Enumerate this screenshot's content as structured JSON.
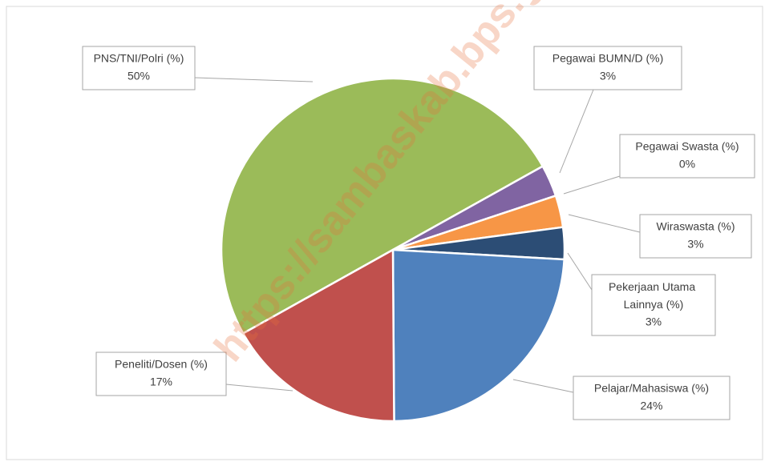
{
  "chart_data": {
    "type": "pie",
    "watermark": "https://sambaskab.bps.go.id",
    "categories": [
      "PNS/TNI/Polri (%)",
      "Pegawai BUMN/D (%)",
      "Pegawai Swasta (%)",
      "Wiraswasta (%)",
      "Pekerjaan Utama Lainnya (%)",
      "Pelajar/Mahasiswa (%)",
      "Peneliti/Dosen (%)"
    ],
    "values": [
      50,
      3,
      0,
      3,
      3,
      24,
      17
    ],
    "value_labels": [
      "50%",
      "3%",
      "0%",
      "3%",
      "3%",
      "24%",
      "17%"
    ],
    "colors": [
      "#9bbb59",
      "#8064a2",
      "#4bacc6",
      "#f79646",
      "#2c4d75",
      "#4f81bd",
      "#c0504d"
    ]
  }
}
